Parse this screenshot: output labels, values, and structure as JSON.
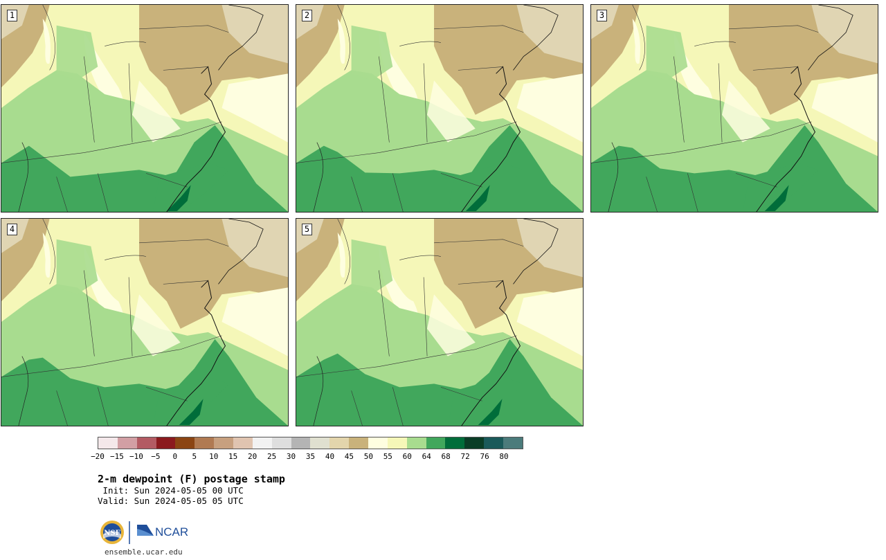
{
  "panels": [
    {
      "label": "1"
    },
    {
      "label": "2"
    },
    {
      "label": "3"
    },
    {
      "label": "4"
    },
    {
      "label": "5"
    }
  ],
  "map_colors": {
    "tan_dark": "#c9b27b",
    "tan_light": "#e0d5b3",
    "yellow": "#f5f7b8",
    "cream": "#fefee0",
    "green_light": "#a8dc8f",
    "green": "#41a75c",
    "green_dark": "#006d3a",
    "grey": "#e8e8e8"
  },
  "colorbar": {
    "colors": [
      "#f4e8ea",
      "#d29fa4",
      "#b35b63",
      "#8b1a1e",
      "#8b4513",
      "#b07a52",
      "#c7a07f",
      "#e0c4b0",
      "#f2f2f2",
      "#dedede",
      "#b4b4b4",
      "#e0e0d0",
      "#e3d5ac",
      "#c9b27b",
      "#fefee0",
      "#f5f7b8",
      "#a8dc8f",
      "#41a75c",
      "#006d3a",
      "#0a3d26",
      "#1a5a5a",
      "#4b7b7b"
    ],
    "ticks": [
      "−20",
      "−15",
      "−10",
      "−5",
      "0",
      "5",
      "10",
      "15",
      "20",
      "25",
      "30",
      "35",
      "40",
      "45",
      "50",
      "55",
      "60",
      "64",
      "68",
      "72",
      "76",
      "80"
    ]
  },
  "title": "2-m dewpoint (F) postage stamp",
  "init": " Init: Sun 2024-05-05 00 UTC",
  "valid": "Valid: Sun 2024-05-05 05 UTC",
  "logos": {
    "nsf": "NSF",
    "ncar": "NCAR"
  },
  "site": "ensemble.ucar.edu"
}
